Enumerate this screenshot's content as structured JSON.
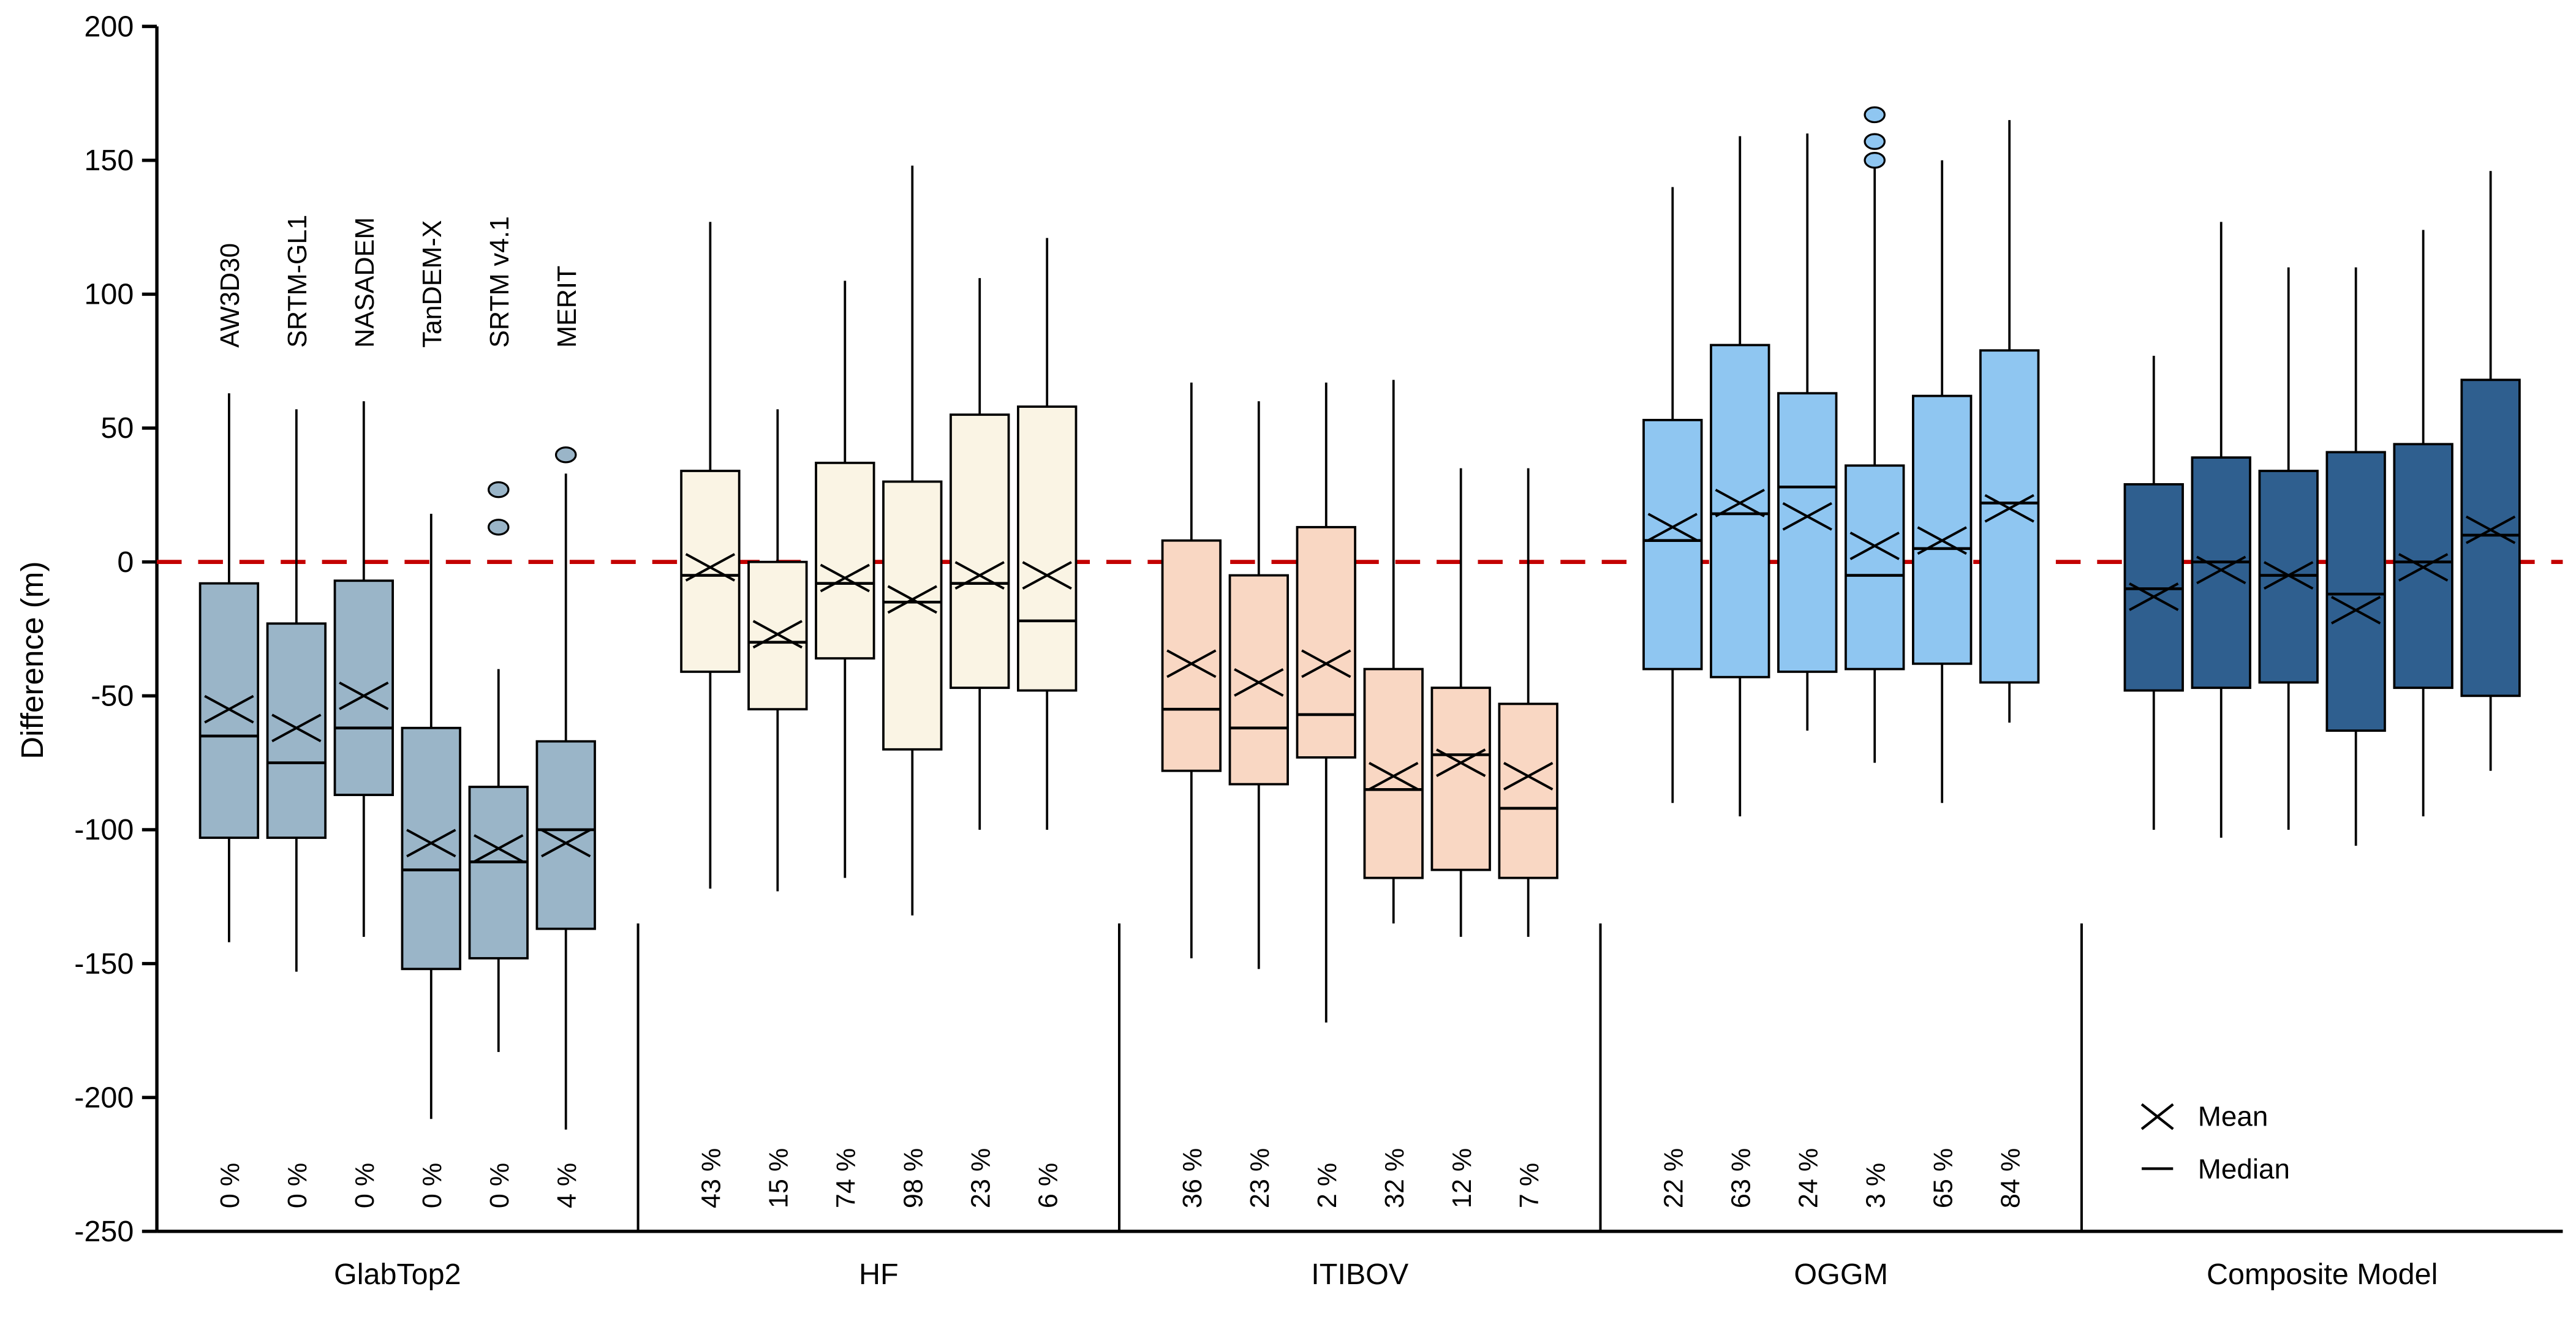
{
  "legend": {
    "mean_label": "Mean",
    "median_label": "Median"
  },
  "chart_data": {
    "type": "boxplot",
    "ylabel": "Difference (m)",
    "ylim": [
      -250,
      200
    ],
    "yticks": [
      -250,
      -200,
      -150,
      -100,
      -50,
      0,
      50,
      100,
      150,
      200
    ],
    "reference_line": 0,
    "reference_color": "#c40000",
    "grid": false,
    "legend_position": "lower right",
    "dem_labels": [
      "AW3D30",
      "SRTM-GL1",
      "NASADEM",
      "TanDEM-X",
      "SRTM v4.1",
      "MERIT"
    ],
    "groups": [
      {
        "label": "GlabTop2",
        "fill": "#9ab5c8",
        "boxes": [
          {
            "dem": "AW3D30",
            "low": -142,
            "q1": -103,
            "median": -65,
            "mean": -55,
            "q3": -8,
            "high": 63,
            "pct": "0 %",
            "outliers": []
          },
          {
            "dem": "SRTM-GL1",
            "low": -153,
            "q1": -103,
            "median": -75,
            "mean": -62,
            "q3": -23,
            "high": 57,
            "pct": "0 %",
            "outliers": []
          },
          {
            "dem": "NASADEM",
            "low": -140,
            "q1": -87,
            "median": -62,
            "mean": -50,
            "q3": -7,
            "high": 60,
            "pct": "0 %",
            "outliers": []
          },
          {
            "dem": "TanDEM-X",
            "low": -208,
            "q1": -152,
            "median": -115,
            "mean": -105,
            "q3": -62,
            "high": 18,
            "pct": "0 %",
            "outliers": []
          },
          {
            "dem": "SRTM v4.1",
            "low": -183,
            "q1": -148,
            "median": -112,
            "mean": -107,
            "q3": -84,
            "high": -40,
            "pct": "0 %",
            "outliers": [
              13,
              27
            ]
          },
          {
            "dem": "MERIT",
            "low": -212,
            "q1": -137,
            "median": -100,
            "mean": -105,
            "q3": -67,
            "high": 33,
            "pct": "4 %",
            "outliers": [
              40
            ]
          }
        ]
      },
      {
        "label": "HF",
        "fill": "#faf4e4",
        "boxes": [
          {
            "dem": "AW3D30",
            "low": -122,
            "q1": -41,
            "median": -5,
            "mean": -2,
            "q3": 34,
            "high": 127,
            "pct": "43 %",
            "outliers": []
          },
          {
            "dem": "SRTM-GL1",
            "low": -123,
            "q1": -55,
            "median": -30,
            "mean": -27,
            "q3": 0,
            "high": 57,
            "pct": "15 %",
            "outliers": []
          },
          {
            "dem": "NASADEM",
            "low": -118,
            "q1": -36,
            "median": -8,
            "mean": -6,
            "q3": 37,
            "high": 105,
            "pct": "74 %",
            "outliers": []
          },
          {
            "dem": "TanDEM-X",
            "low": -132,
            "q1": -70,
            "median": -15,
            "mean": -14,
            "q3": 30,
            "high": 148,
            "pct": "98 %",
            "outliers": []
          },
          {
            "dem": "SRTM v4.1",
            "low": -100,
            "q1": -47,
            "median": -8,
            "mean": -5,
            "q3": 55,
            "high": 106,
            "pct": "23 %",
            "outliers": []
          },
          {
            "dem": "MERIT",
            "low": -100,
            "q1": -48,
            "median": -22,
            "mean": -5,
            "q3": 58,
            "high": 121,
            "pct": "6 %",
            "outliers": []
          }
        ]
      },
      {
        "label": "ITIBOV",
        "fill": "#f9d7c3",
        "boxes": [
          {
            "dem": "AW3D30",
            "low": -148,
            "q1": -78,
            "median": -55,
            "mean": -38,
            "q3": 8,
            "high": 67,
            "pct": "36 %",
            "outliers": []
          },
          {
            "dem": "SRTM-GL1",
            "low": -152,
            "q1": -83,
            "median": -62,
            "mean": -45,
            "q3": -5,
            "high": 60,
            "pct": "23 %",
            "outliers": []
          },
          {
            "dem": "NASADEM",
            "low": -172,
            "q1": -73,
            "median": -57,
            "mean": -38,
            "q3": 13,
            "high": 67,
            "pct": "2 %",
            "outliers": []
          },
          {
            "dem": "TanDEM-X",
            "low": -135,
            "q1": -118,
            "median": -85,
            "mean": -80,
            "q3": -40,
            "high": 68,
            "pct": "32 %",
            "outliers": []
          },
          {
            "dem": "SRTM v4.1",
            "low": -140,
            "q1": -115,
            "median": -72,
            "mean": -75,
            "q3": -47,
            "high": 35,
            "pct": "12 %",
            "outliers": []
          },
          {
            "dem": "MERIT",
            "low": -140,
            "q1": -118,
            "median": -92,
            "mean": -80,
            "q3": -53,
            "high": 35,
            "pct": "7 %",
            "outliers": []
          }
        ]
      },
      {
        "label": "OGGM",
        "fill": "#8fc6f1",
        "boxes": [
          {
            "dem": "AW3D30",
            "low": -90,
            "q1": -40,
            "median": 8,
            "mean": 13,
            "q3": 53,
            "high": 140,
            "pct": "22 %",
            "outliers": []
          },
          {
            "dem": "SRTM-GL1",
            "low": -95,
            "q1": -43,
            "median": 18,
            "mean": 22,
            "q3": 81,
            "high": 159,
            "pct": "63 %",
            "outliers": []
          },
          {
            "dem": "NASADEM",
            "low": -63,
            "q1": -41,
            "median": 28,
            "mean": 17,
            "q3": 63,
            "high": 160,
            "pct": "24 %",
            "outliers": []
          },
          {
            "dem": "TanDEM-X",
            "low": -75,
            "q1": -40,
            "median": -5,
            "mean": 6,
            "q3": 36,
            "high": 148,
            "pct": "3 %",
            "outliers": [
              150,
              157,
              167
            ]
          },
          {
            "dem": "SRTM v4.1",
            "low": -90,
            "q1": -38,
            "median": 5,
            "mean": 8,
            "q3": 62,
            "high": 150,
            "pct": "65 %",
            "outliers": []
          },
          {
            "dem": "MERIT",
            "low": -60,
            "q1": -45,
            "median": 22,
            "mean": 20,
            "q3": 79,
            "high": 165,
            "pct": "84 %",
            "outliers": []
          }
        ]
      },
      {
        "label": "Composite Model",
        "fill": "#2f5f8f",
        "boxes": [
          {
            "dem": "AW3D30",
            "low": -100,
            "q1": -48,
            "median": -10,
            "mean": -13,
            "q3": 29,
            "high": 77,
            "pct": "",
            "outliers": []
          },
          {
            "dem": "SRTM-GL1",
            "low": -103,
            "q1": -47,
            "median": 0,
            "mean": -3,
            "q3": 39,
            "high": 127,
            "pct": "",
            "outliers": []
          },
          {
            "dem": "NASADEM",
            "low": -100,
            "q1": -45,
            "median": -5,
            "mean": -5,
            "q3": 34,
            "high": 110,
            "pct": "",
            "outliers": []
          },
          {
            "dem": "TanDEM-X",
            "low": -106,
            "q1": -63,
            "median": -12,
            "mean": -18,
            "q3": 41,
            "high": 110,
            "pct": "",
            "outliers": []
          },
          {
            "dem": "SRTM v4.1",
            "low": -95,
            "q1": -47,
            "median": 0,
            "mean": -2,
            "q3": 44,
            "high": 124,
            "pct": "",
            "outliers": []
          },
          {
            "dem": "MERIT",
            "low": -78,
            "q1": -50,
            "median": 10,
            "mean": 12,
            "q3": 68,
            "high": 146,
            "pct": "",
            "outliers": []
          }
        ]
      }
    ]
  }
}
